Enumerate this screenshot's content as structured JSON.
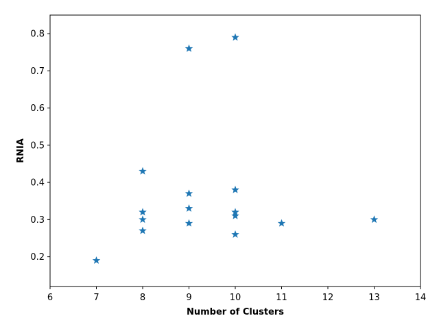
{
  "chart_data": {
    "type": "scatter",
    "title": "",
    "xlabel": "Number of Clusters",
    "ylabel": "RNIA",
    "xlim": [
      6,
      14
    ],
    "ylim": [
      0.12,
      0.85
    ],
    "x_ticks": [
      6,
      7,
      8,
      9,
      10,
      11,
      12,
      13,
      14
    ],
    "y_ticks": [
      0.2,
      0.3,
      0.4,
      0.5,
      0.6,
      0.7,
      0.8
    ],
    "grid": false,
    "marker": "star",
    "series": [
      {
        "color": "#1f77b4",
        "points": [
          {
            "x": 7,
            "y": 0.19
          },
          {
            "x": 8,
            "y": 0.43
          },
          {
            "x": 8,
            "y": 0.32
          },
          {
            "x": 8,
            "y": 0.3
          },
          {
            "x": 8,
            "y": 0.27
          },
          {
            "x": 9,
            "y": 0.76
          },
          {
            "x": 9,
            "y": 0.37
          },
          {
            "x": 9,
            "y": 0.33
          },
          {
            "x": 9,
            "y": 0.29
          },
          {
            "x": 10,
            "y": 0.79
          },
          {
            "x": 10,
            "y": 0.38
          },
          {
            "x": 10,
            "y": 0.32
          },
          {
            "x": 10,
            "y": 0.31
          },
          {
            "x": 10,
            "y": 0.26
          },
          {
            "x": 11,
            "y": 0.29
          },
          {
            "x": 13,
            "y": 0.3
          }
        ]
      }
    ]
  }
}
